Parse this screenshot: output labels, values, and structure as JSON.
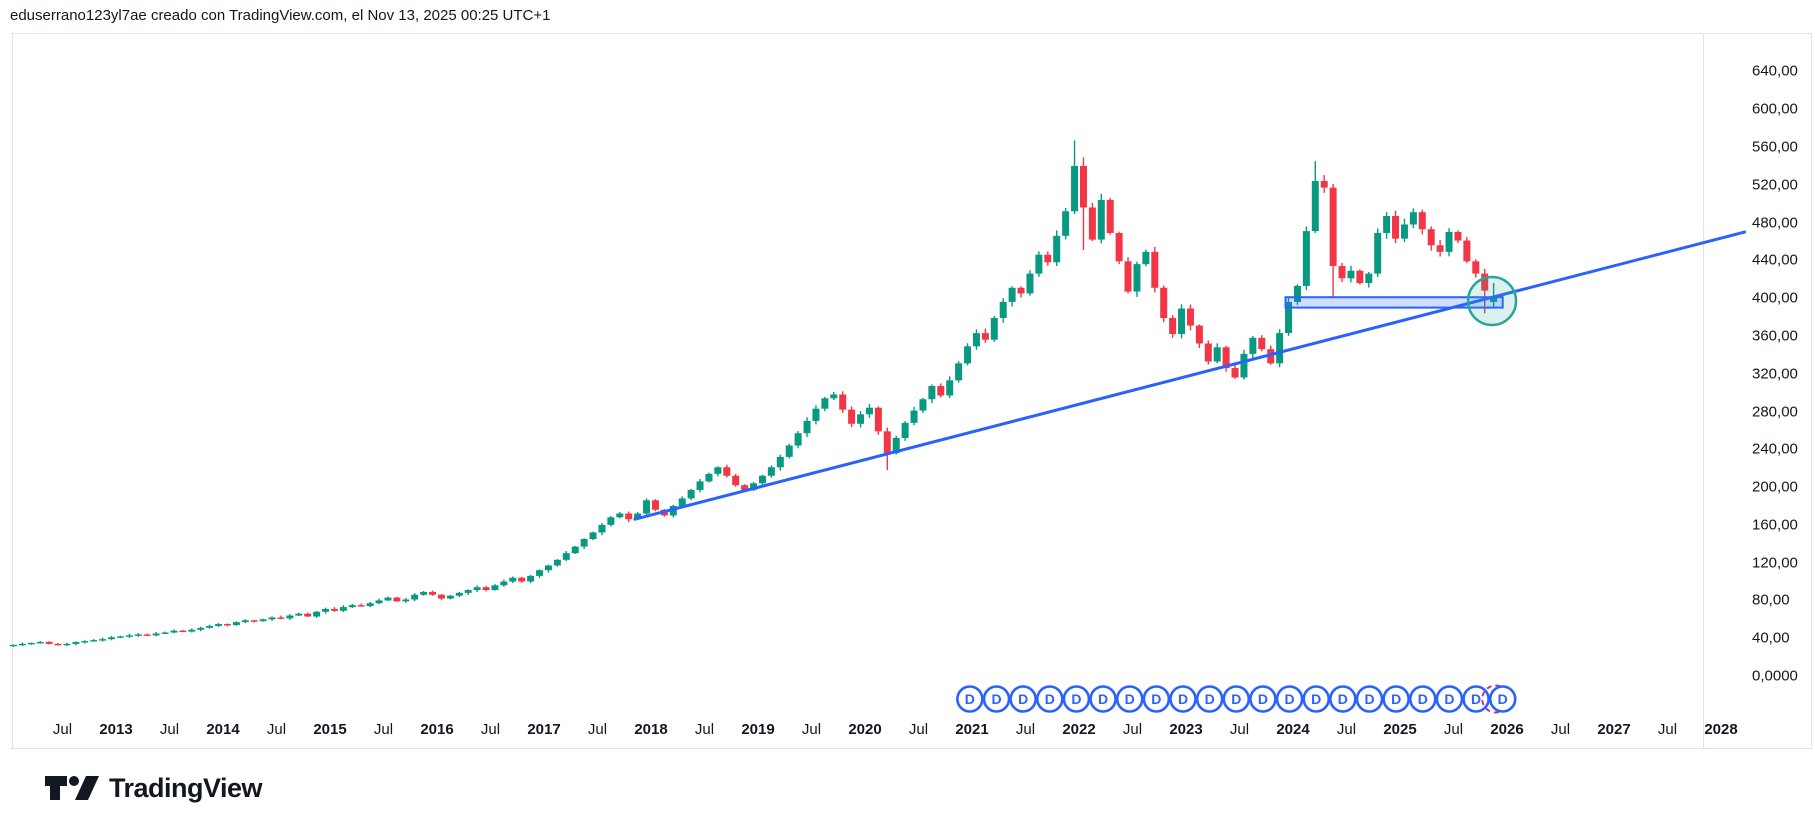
{
  "header": {
    "title": "eduserrano123yl7ae creado con TradingView.com, el Nov 13, 2025 00:25 UTC+1"
  },
  "footer": {
    "brand": "TradingView"
  },
  "chart_data": {
    "type": "candlestick",
    "interval": "monthly",
    "title": "eduserrano123yl7ae creado con TradingView.com, el Nov 13, 2025 00:25 UTC+1",
    "grid": false,
    "legend_position": "none",
    "y_axis": {
      "side": "right",
      "range": [
        0,
        680
      ],
      "labels": [
        {
          "value": 640,
          "text": "640,00"
        },
        {
          "value": 600,
          "text": "600,00"
        },
        {
          "value": 560,
          "text": "560,00"
        },
        {
          "value": 520,
          "text": "520,00"
        },
        {
          "value": 480,
          "text": "480,00"
        },
        {
          "value": 440,
          "text": "440,00"
        },
        {
          "value": 400,
          "text": "400,00"
        },
        {
          "value": 360,
          "text": "360,00"
        },
        {
          "value": 320,
          "text": "320,00"
        },
        {
          "value": 280,
          "text": "280,00"
        },
        {
          "value": 240,
          "text": "240,00"
        },
        {
          "value": 200,
          "text": "200,00"
        },
        {
          "value": 160,
          "text": "160,00"
        },
        {
          "value": 120,
          "text": "120,00"
        },
        {
          "value": 80,
          "text": "80,00"
        },
        {
          "value": 40,
          "text": "40,00"
        },
        {
          "value": 0,
          "text": "0,0000"
        }
      ]
    },
    "x_axis": {
      "range_years": [
        2011.9,
        2028.3
      ],
      "labels": [
        {
          "text": "Jul",
          "date": 2012.5,
          "year": false
        },
        {
          "text": "2013",
          "date": 2013.0,
          "year": true
        },
        {
          "text": "Jul",
          "date": 2013.5,
          "year": false
        },
        {
          "text": "2014",
          "date": 2014.0,
          "year": true
        },
        {
          "text": "Jul",
          "date": 2014.5,
          "year": false
        },
        {
          "text": "2015",
          "date": 2015.0,
          "year": true
        },
        {
          "text": "Jul",
          "date": 2015.5,
          "year": false
        },
        {
          "text": "2016",
          "date": 2016.0,
          "year": true
        },
        {
          "text": "Jul",
          "date": 2016.5,
          "year": false
        },
        {
          "text": "2017",
          "date": 2017.0,
          "year": true
        },
        {
          "text": "Jul",
          "date": 2017.5,
          "year": false
        },
        {
          "text": "2018",
          "date": 2018.0,
          "year": true
        },
        {
          "text": "Jul",
          "date": 2018.5,
          "year": false
        },
        {
          "text": "2019",
          "date": 2019.0,
          "year": true
        },
        {
          "text": "Jul",
          "date": 2019.5,
          "year": false
        },
        {
          "text": "2020",
          "date": 2020.0,
          "year": true
        },
        {
          "text": "Jul",
          "date": 2020.5,
          "year": false
        },
        {
          "text": "2021",
          "date": 2021.0,
          "year": true
        },
        {
          "text": "Jul",
          "date": 2021.5,
          "year": false
        },
        {
          "text": "2022",
          "date": 2022.0,
          "year": true
        },
        {
          "text": "Jul",
          "date": 2022.5,
          "year": false
        },
        {
          "text": "2023",
          "date": 2023.0,
          "year": true
        },
        {
          "text": "Jul",
          "date": 2023.5,
          "year": false
        },
        {
          "text": "2024",
          "date": 2024.0,
          "year": true
        },
        {
          "text": "Jul",
          "date": 2024.5,
          "year": false
        },
        {
          "text": "2025",
          "date": 2025.0,
          "year": true
        },
        {
          "text": "Jul",
          "date": 2025.5,
          "year": false
        },
        {
          "text": "2026",
          "date": 2026.0,
          "year": true
        },
        {
          "text": "Jul",
          "date": 2026.5,
          "year": false
        },
        {
          "text": "2027",
          "date": 2027.0,
          "year": true
        },
        {
          "text": "Jul",
          "date": 2027.5,
          "year": false
        },
        {
          "text": "2028",
          "date": 2028.0,
          "year": true
        }
      ]
    },
    "series": {
      "name": "price",
      "start_year": 2012,
      "start_month": 1,
      "first_open": 32,
      "closes": [
        33,
        34,
        35,
        36,
        34,
        33,
        34,
        36,
        37,
        38,
        39,
        41,
        42,
        43,
        44,
        43,
        45,
        46,
        48,
        47,
        49,
        51,
        53,
        55,
        54,
        57,
        59,
        58,
        60,
        62,
        61,
        64,
        66,
        63,
        68,
        71,
        69,
        73,
        75,
        74,
        77,
        80,
        83,
        79,
        81,
        86,
        89,
        86,
        82,
        85,
        88,
        91,
        94,
        91,
        96,
        100,
        104,
        100,
        106,
        112,
        117,
        123,
        130,
        137,
        145,
        152,
        160,
        168,
        172,
        166,
        172,
        186,
        176,
        170,
        180,
        188,
        197,
        206,
        214,
        221,
        212,
        202,
        197,
        204,
        212,
        221,
        232,
        244,
        257,
        270,
        283,
        294,
        298,
        282,
        267,
        277,
        284,
        259,
        236,
        252,
        268,
        281,
        293,
        307,
        297,
        313,
        331,
        349,
        363,
        356,
        379,
        396,
        411,
        405,
        426,
        446,
        438,
        466,
        492,
        540,
        496,
        462,
        504,
        469,
        439,
        407,
        436,
        449,
        411,
        379,
        362,
        389,
        371,
        352,
        333,
        348,
        326,
        316,
        341,
        358,
        346,
        331,
        363,
        396,
        413,
        471,
        524,
        517,
        434,
        421,
        429,
        416,
        426,
        469,
        487,
        463,
        478,
        491,
        473,
        456,
        449,
        470,
        461,
        439,
        426,
        408,
        401
      ],
      "ohlc_overrides": {
        "69": [
          172,
          174,
          163,
          166
        ],
        "98": [
          259,
          263,
          218,
          236
        ],
        "119": [
          492,
          567,
          489,
          540
        ],
        "120": [
          540,
          549,
          451,
          496
        ],
        "146": [
          471,
          545,
          469,
          524
        ],
        "148": [
          517,
          521,
          401,
          434
        ],
        "165": [
          426,
          431,
          384,
          408
        ],
        "166": [
          396,
          416,
          391,
          401
        ]
      }
    },
    "annotations": {
      "trendline": {
        "date1": 2017.85,
        "price1": 166,
        "date2": 2028.22,
        "price2": 470
      },
      "rectangle": {
        "date1": 2023.93,
        "date2": 2025.96,
        "price_low": 390,
        "price_high": 401
      },
      "circle": {
        "date": 2025.86,
        "price": 397,
        "radius_px": 24
      },
      "dividends": {
        "label": "D",
        "first_date": 2020.98,
        "step_years": 0.249,
        "count": 21,
        "projected_last": true
      }
    },
    "colors": {
      "up": "#089981",
      "down": "#f23645",
      "drawing_blue": "#2962ff",
      "rect_fill": "rgba(41,98,255,0.22)",
      "circle_stroke": "#26a69a",
      "circle_fill": "rgba(38,166,154,0.16)",
      "dividend_ring": "#2962ff",
      "dividend_projected": "#cc2f90",
      "text": "#131722",
      "border": "#e0e3eb"
    }
  }
}
